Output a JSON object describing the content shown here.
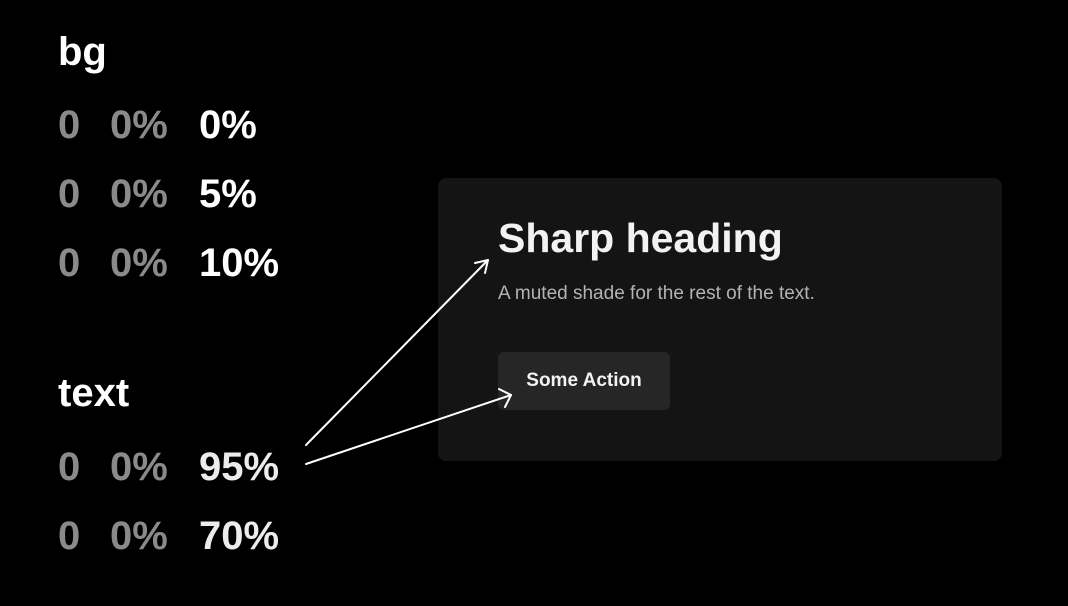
{
  "bg": {
    "title": "bg",
    "rows": [
      {
        "hue": "0",
        "saturation": "0%",
        "lightness": "0%"
      },
      {
        "hue": "0",
        "saturation": "0%",
        "lightness": "5%"
      },
      {
        "hue": "0",
        "saturation": "0%",
        "lightness": "10%"
      }
    ]
  },
  "text": {
    "title": "text",
    "rows": [
      {
        "hue": "0",
        "saturation": "0%",
        "lightness": "95%"
      },
      {
        "hue": "0",
        "saturation": "0%",
        "lightness": "70%"
      }
    ]
  },
  "card": {
    "heading": "Sharp heading",
    "description": "A muted shade for the rest of the text.",
    "button_label": "Some Action"
  },
  "colors": {
    "page_bg": "#000000",
    "card_bg": "#141414",
    "button_bg": "#262626",
    "text_strong": "#f2f2f2",
    "text_muted": "#b3b3b3"
  }
}
